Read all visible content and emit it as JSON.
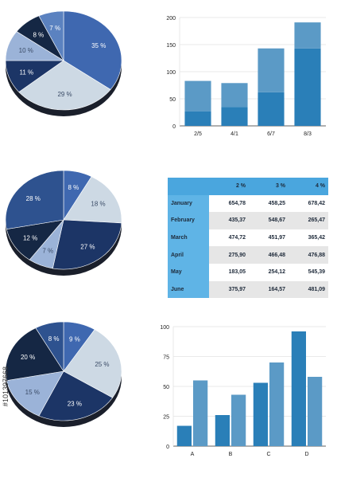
{
  "colors": {
    "navy": "#1c3566",
    "dark_navy": "#152744",
    "blue": "#3f68b0",
    "mid_blue": "#5b82c0",
    "light_blue": "#9bb3d8",
    "pale": "#cdd9e4",
    "bar_dark": "#2a7fb8",
    "bar_light": "#5b9ac6"
  },
  "watermark": "#101397668",
  "chart_data": [
    {
      "type": "pie",
      "slices": [
        {
          "label": "35 %",
          "value": 35,
          "color": "#3f68b0"
        },
        {
          "label": "29 %",
          "value": 29,
          "color": "#cdd9e4"
        },
        {
          "label": "11 %",
          "value": 11,
          "color": "#1c3566"
        },
        {
          "label": "10 %",
          "value": 10,
          "color": "#9bb3d8"
        },
        {
          "label": "8 %",
          "value": 8,
          "color": "#152744"
        },
        {
          "label": "7 %",
          "value": 7,
          "color": "#5b82c0"
        }
      ]
    },
    {
      "type": "bar",
      "categories": [
        "2/5",
        "4/1",
        "6/7",
        "8/3"
      ],
      "series": [
        {
          "values": [
            27,
            35,
            62,
            143
          ]
        },
        {
          "values": [
            56,
            44,
            81,
            48
          ]
        }
      ],
      "ylim": [
        0,
        200
      ],
      "yticks": [
        "0",
        "50",
        "100",
        "150",
        "200"
      ],
      "stacked": true,
      "grid": true
    },
    {
      "type": "pie",
      "slices": [
        {
          "label": "8 %",
          "value": 8,
          "color": "#3f68b0"
        },
        {
          "label": "18 %",
          "value": 18,
          "color": "#cdd9e4"
        },
        {
          "label": "27 %",
          "value": 27,
          "color": "#1c3566"
        },
        {
          "label": "7 %",
          "value": 7,
          "color": "#9bb3d8"
        },
        {
          "label": "12 %",
          "value": 12,
          "color": "#152744"
        },
        {
          "label": "28 %",
          "value": 28,
          "color": "#2e528f"
        }
      ]
    },
    {
      "type": "table",
      "columns": [
        "2 %",
        "3 %",
        "4 %"
      ],
      "rows": [
        {
          "label": "January",
          "values": [
            "654,78",
            "458,25",
            "678,42"
          ]
        },
        {
          "label": "February",
          "values": [
            "435,37",
            "548,67",
            "265,47"
          ]
        },
        {
          "label": "March",
          "values": [
            "474,72",
            "451,97",
            "365,42"
          ]
        },
        {
          "label": "April",
          "values": [
            "275,90",
            "466,48",
            "476,88"
          ]
        },
        {
          "label": "May",
          "values": [
            "183,05",
            "254,12",
            "545,39"
          ]
        },
        {
          "label": "June",
          "values": [
            "375,97",
            "164,57",
            "481,09"
          ]
        }
      ]
    },
    {
      "type": "pie",
      "slices": [
        {
          "label": "9 %",
          "value": 9,
          "color": "#3f68b0"
        },
        {
          "label": "25 %",
          "value": 25,
          "color": "#cdd9e4"
        },
        {
          "label": "23 %",
          "value": 23,
          "color": "#1c3566"
        },
        {
          "label": "15 %",
          "value": 15,
          "color": "#9bb3d8"
        },
        {
          "label": "20 %",
          "value": 20,
          "color": "#152744"
        },
        {
          "label": "8 %",
          "value": 8,
          "color": "#2e528f"
        }
      ]
    },
    {
      "type": "bar",
      "categories": [
        "A",
        "B",
        "C",
        "D"
      ],
      "series": [
        {
          "values": [
            17,
            26,
            53,
            96
          ],
          "color": "#2a7fb8"
        },
        {
          "values": [
            55,
            43,
            70,
            58
          ],
          "color": "#5b9ac6"
        }
      ],
      "ylim": [
        0,
        100
      ],
      "yticks": [
        "0",
        "25",
        "50",
        "75",
        "100"
      ],
      "stacked": false,
      "grid": true
    }
  ]
}
